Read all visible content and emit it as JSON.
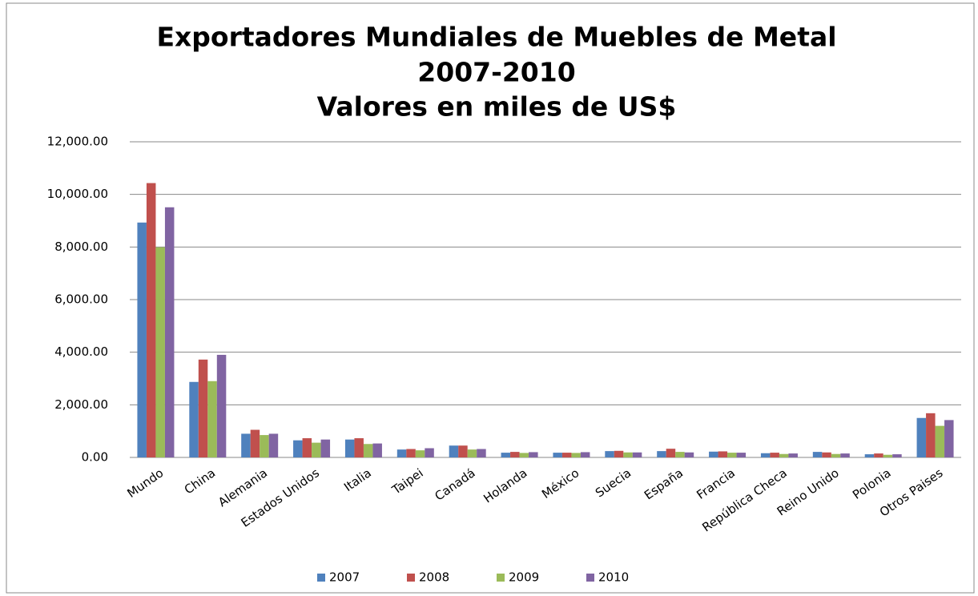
{
  "chart_data": {
    "type": "bar",
    "title": [
      "Exportadores Mundiales de Muebles de Metal",
      "2007-2010",
      "Valores en miles de US$"
    ],
    "categories": [
      "Mundo",
      "China",
      "Alemania",
      "Estados Unidos",
      "Italia",
      "Taipei",
      "Canadá",
      "Holanda",
      "México",
      "Suecia",
      "España",
      "Francia",
      "República Checa",
      "Reino Unido",
      "Polonia",
      "Otros Paises"
    ],
    "series": [
      {
        "name": "2007",
        "color": "#4f81bd",
        "values": [
          8930,
          2870,
          900,
          650,
          680,
          300,
          450,
          180,
          180,
          240,
          240,
          220,
          160,
          210,
          120,
          1500
        ]
      },
      {
        "name": "2008",
        "color": "#c0504d",
        "values": [
          10430,
          3720,
          1050,
          730,
          730,
          320,
          450,
          210,
          180,
          250,
          330,
          230,
          180,
          190,
          150,
          1680
        ]
      },
      {
        "name": "2009",
        "color": "#9bbb59",
        "values": [
          7990,
          2900,
          850,
          560,
          510,
          270,
          300,
          170,
          170,
          190,
          210,
          180,
          130,
          130,
          100,
          1200
        ]
      },
      {
        "name": "2010",
        "color": "#8064a2",
        "values": [
          9510,
          3900,
          900,
          680,
          530,
          350,
          320,
          200,
          200,
          190,
          190,
          180,
          150,
          150,
          120,
          1420
        ]
      }
    ],
    "ylim": [
      0,
      12000
    ],
    "yticks": [
      {
        "value": 0,
        "label": "0.00"
      },
      {
        "value": 2000,
        "label": "2,000.00"
      },
      {
        "value": 4000,
        "label": "4,000.00"
      },
      {
        "value": 6000,
        "label": "6,000.00"
      },
      {
        "value": 8000,
        "label": "8,000.00"
      },
      {
        "value": 10000,
        "label": "10,000.00"
      },
      {
        "value": 12000,
        "label": "12,000.00"
      }
    ],
    "grid": true,
    "legend": "bottom"
  }
}
